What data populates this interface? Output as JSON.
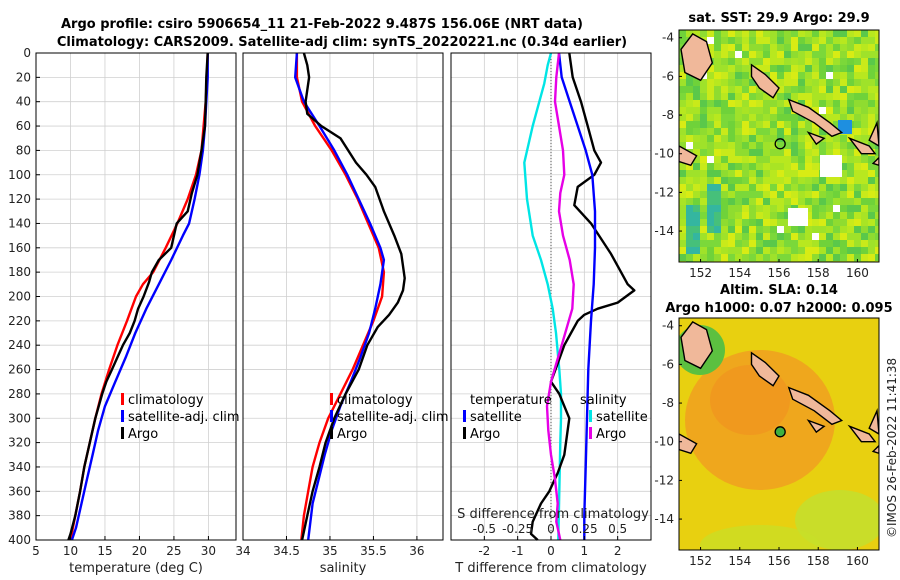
{
  "header": {
    "line1": "Argo profile: csiro 5906654_11 21-Feb-2022 9.487S 156.06E (NRT data)",
    "line2": "Climatology: CARS2009. Satellite-adj clim: synTS_20220221.nc (0.34d earlier)"
  },
  "colors": {
    "climatology": "#ff0000",
    "satellite": "#0000ff",
    "argo": "#000000",
    "temp_diff": "#00e5e5",
    "sal_diff": "#e600e6",
    "frame": "#000000",
    "grid": "#d0d0d0"
  },
  "chart_data": [
    {
      "type": "line",
      "id": "temperature",
      "xlabel": "temperature (deg C)",
      "ylabel": "depth",
      "xlim": [
        5,
        34
      ],
      "ylim": [
        400,
        0
      ],
      "xticks": [
        5,
        10,
        15,
        20,
        25,
        30
      ],
      "yticks": [
        0,
        20,
        40,
        60,
        80,
        100,
        120,
        140,
        160,
        180,
        200,
        220,
        240,
        260,
        280,
        300,
        320,
        340,
        360,
        380,
        400
      ],
      "series": [
        {
          "name": "climatology",
          "color": "#ff0000",
          "x": [
            29.9,
            29.8,
            29.6,
            29.3,
            29.0,
            28.2,
            27.0,
            25.5,
            23.8,
            22.0,
            20.5,
            19.5,
            18.2,
            16.8,
            15.6,
            14.5,
            13.6,
            12.8,
            12.0,
            11.4,
            10.7,
            10.0
          ],
          "y": [
            0,
            20,
            40,
            60,
            80,
            100,
            120,
            140,
            160,
            180,
            190,
            200,
            220,
            240,
            260,
            280,
            300,
            320,
            340,
            360,
            380,
            400
          ]
        },
        {
          "name": "satellite-adj. clim",
          "color": "#0000ff",
          "x": [
            29.9,
            29.9,
            29.7,
            29.5,
            29.2,
            28.7,
            28.0,
            27.2,
            26.3,
            24.6,
            22.8,
            21.0,
            19.4,
            18.0,
            16.5,
            15.0,
            14.0,
            13.2,
            12.4,
            11.6,
            10.8,
            10.2
          ],
          "y": [
            0,
            20,
            40,
            60,
            80,
            100,
            120,
            140,
            150,
            170,
            190,
            210,
            230,
            250,
            270,
            290,
            310,
            330,
            350,
            370,
            390,
            400
          ]
        },
        {
          "name": "Argo",
          "color": "#000000",
          "x": [
            29.9,
            29.7,
            29.6,
            29.5,
            29.0,
            28.4,
            27.6,
            27.0,
            25.4,
            24.6,
            22.8,
            21.8,
            21.4,
            20.6,
            19.8,
            19.3,
            18.6,
            17.6,
            16.8,
            16.0,
            15.2,
            14.6,
            13.6,
            12.8,
            12.0,
            11.4,
            10.7,
            10.0,
            9.7
          ],
          "y": [
            0,
            20,
            40,
            60,
            80,
            100,
            115,
            130,
            140,
            160,
            170,
            180,
            188,
            200,
            210,
            220,
            230,
            240,
            250,
            260,
            270,
            280,
            300,
            320,
            340,
            360,
            380,
            395,
            400
          ]
        }
      ]
    },
    {
      "type": "line",
      "id": "salinity",
      "xlabel": "salinity",
      "ylabel": "depth",
      "xlim": [
        34,
        36.3
      ],
      "ylim": [
        400,
        0
      ],
      "xticks": [
        34,
        34.5,
        35,
        35.5,
        36
      ],
      "xticklabels": [
        "34",
        "34.5",
        "35",
        "35.5",
        "36"
      ],
      "series": [
        {
          "name": "climatology",
          "color": "#ff0000",
          "x": [
            34.62,
            34.62,
            34.68,
            34.83,
            35.02,
            35.18,
            35.32,
            35.44,
            35.56,
            35.62,
            35.6,
            35.5,
            35.38,
            35.26,
            35.12,
            34.98,
            34.88,
            34.8,
            34.75,
            34.7,
            34.67
          ],
          "y": [
            0,
            20,
            40,
            60,
            80,
            100,
            120,
            140,
            160,
            180,
            200,
            220,
            240,
            260,
            280,
            300,
            320,
            340,
            360,
            380,
            400
          ]
        },
        {
          "name": "satellite-adj. clim",
          "color": "#0000ff",
          "x": [
            34.62,
            34.6,
            34.7,
            34.88,
            35.05,
            35.2,
            35.33,
            35.46,
            35.58,
            35.62,
            35.58,
            35.52,
            35.45,
            35.35,
            35.24,
            35.12,
            35.02,
            34.94,
            34.87,
            34.8,
            34.75
          ],
          "y": [
            0,
            20,
            40,
            60,
            80,
            100,
            120,
            140,
            160,
            170,
            190,
            210,
            230,
            250,
            270,
            290,
            310,
            330,
            350,
            370,
            400
          ]
        },
        {
          "name": "Argo",
          "color": "#000000",
          "x": [
            34.7,
            34.74,
            34.76,
            34.72,
            34.74,
            34.9,
            35.12,
            35.3,
            35.42,
            35.52,
            35.62,
            35.74,
            35.82,
            35.86,
            35.84,
            35.78,
            35.68,
            35.55,
            35.43,
            35.33,
            35.18,
            35.05,
            34.95,
            34.88,
            34.8,
            34.74,
            34.68
          ],
          "y": [
            0,
            10,
            20,
            40,
            50,
            60,
            70,
            90,
            100,
            110,
            130,
            150,
            165,
            185,
            195,
            205,
            215,
            225,
            240,
            260,
            280,
            300,
            320,
            340,
            360,
            380,
            400
          ]
        }
      ]
    },
    {
      "type": "line",
      "id": "difference",
      "xlabel": "T difference from climatology",
      "x2label": "S difference from climatology",
      "xlim": [
        -3,
        3
      ],
      "ylim": [
        400,
        0
      ],
      "xticks": [
        -2,
        -1,
        0,
        1,
        2
      ],
      "x2lim": [
        -0.75,
        0.75
      ],
      "x2ticks": [
        -0.5,
        -0.25,
        0,
        0.25,
        0.5
      ],
      "x2ticklabels": [
        "-0.5",
        "-0.25",
        "0",
        "0.25",
        "0.5"
      ],
      "series": [
        {
          "name": "temperature satellite",
          "color": "#00e5e5",
          "x": [
            0,
            -0.1,
            -0.2,
            -0.35,
            -0.55,
            -0.8,
            -0.72,
            -0.55,
            -0.3,
            -0.1,
            0.05,
            0.15,
            0.25,
            0.3,
            0.3,
            0.28,
            0.25,
            0.22
          ],
          "y": [
            0,
            10,
            25,
            40,
            60,
            90,
            120,
            150,
            170,
            190,
            210,
            230,
            260,
            280,
            300,
            320,
            360,
            400
          ]
        },
        {
          "name": "temperature Argo",
          "color": "#000000",
          "x": [
            0.55,
            0.65,
            0.9,
            1.1,
            1.3,
            1.5,
            1.3,
            0.8,
            0.7,
            1.2,
            1.8,
            2.1,
            2.3,
            2.5,
            2.0,
            1.4,
            1.0,
            0.8,
            0.6,
            0.4,
            0.2,
            0.0,
            0.25,
            0.55,
            0.4,
            0.2,
            -0.05,
            -0.3,
            -0.55,
            -0.6,
            -0.4
          ],
          "y": [
            0,
            20,
            40,
            60,
            80,
            90,
            100,
            110,
            125,
            140,
            165,
            180,
            190,
            195,
            205,
            210,
            215,
            220,
            230,
            240,
            255,
            270,
            280,
            300,
            330,
            345,
            360,
            370,
            385,
            395,
            400
          ]
        },
        {
          "name": "salinity satellite",
          "color": "#0000ff",
          "x": [
            0.06,
            0.08,
            0.14,
            0.2,
            0.26,
            0.31,
            0.33,
            0.33,
            0.32,
            0.3,
            0.28,
            0.27,
            0.26,
            0.25,
            0.25
          ],
          "y": [
            0,
            20,
            40,
            60,
            80,
            100,
            130,
            160,
            190,
            220,
            260,
            300,
            340,
            380,
            400
          ]
        },
        {
          "name": "salinity Argo",
          "color": "#e600e6",
          "x": [
            0.06,
            0.04,
            0.03,
            0.06,
            0.09,
            0.1,
            0.07,
            0.06,
            0.09,
            0.14,
            0.17,
            0.16,
            0.12,
            0.08,
            0.04,
            0.0,
            -0.03,
            -0.02,
            0.0,
            0.03,
            0.05,
            0.04,
            0.06,
            0.07
          ],
          "y": [
            0,
            20,
            40,
            60,
            80,
            100,
            115,
            130,
            150,
            170,
            190,
            210,
            225,
            240,
            255,
            270,
            290,
            310,
            330,
            350,
            370,
            385,
            395,
            400
          ]
        }
      ]
    },
    {
      "type": "heatmap",
      "id": "sst_map",
      "title": "sat. SST: 29.9 Argo: 29.9",
      "xlim": [
        150.9,
        161.1
      ],
      "ylim": [
        -15.6,
        -3.6
      ],
      "xticks": [
        152,
        154,
        156,
        158,
        160
      ],
      "yticks": [
        -4,
        -6,
        -8,
        -10,
        -12,
        -14
      ],
      "marker": {
        "lon": 156.06,
        "lat": -9.487
      }
    },
    {
      "type": "heatmap",
      "id": "sla_map",
      "title": "Altim. SLA: 0.14",
      "subtitle": "Argo h1000: 0.07 h2000: 0.095",
      "xlim": [
        150.9,
        161.1
      ],
      "ylim": [
        -15.6,
        -3.6
      ],
      "xticks": [
        152,
        154,
        156,
        158,
        160
      ],
      "yticks": [
        -4,
        -6,
        -8,
        -10,
        -12,
        -14
      ],
      "marker": {
        "lon": 156.06,
        "lat": -9.487
      }
    }
  ],
  "legend_temp": [
    "climatology",
    "satellite-adj. clim",
    "Argo"
  ],
  "legend_sal": [
    "climatology",
    "satellite-adj. clim",
    "Argo"
  ],
  "legend_diff": {
    "temp_title": "temperature",
    "sal_title": "salinity",
    "items": [
      "satellite",
      "Argo",
      "satellite",
      "Argo"
    ]
  },
  "stamp": "©IMOS 26-Feb-2022 11:41:38"
}
